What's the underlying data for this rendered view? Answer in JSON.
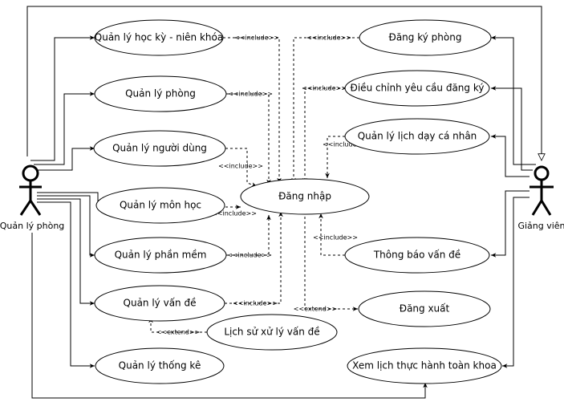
{
  "actors": {
    "manager": "Quản lý phòng",
    "lecturer": "Giảng viên"
  },
  "use_cases": {
    "semester": "Quản lý học kỳ - niên khóa",
    "room": "Quản lý phòng",
    "users": "Quản lý người dùng",
    "subjects": "Quản lý môn học",
    "software": "Quản lý phần mềm",
    "issues": "Quản lý vấn đề",
    "statistics": "Quản lý thống kê",
    "issue_history": "Lịch sử xử lý vấn đề",
    "login": "Đăng nhập",
    "register_room": "Đăng ký phòng",
    "adjust_request": "Điều chỉnh yêu cầu đăng ký",
    "personal_schedule": "Quản lý lịch dạy cá nhân",
    "report_issue": "Thông báo vấn đề",
    "logout": "Đăng xuất",
    "faculty_schedule": "Xem lịch thực hành toàn khoa"
  },
  "relations": {
    "include": "<<include>>",
    "extend": "<<extend>>"
  }
}
